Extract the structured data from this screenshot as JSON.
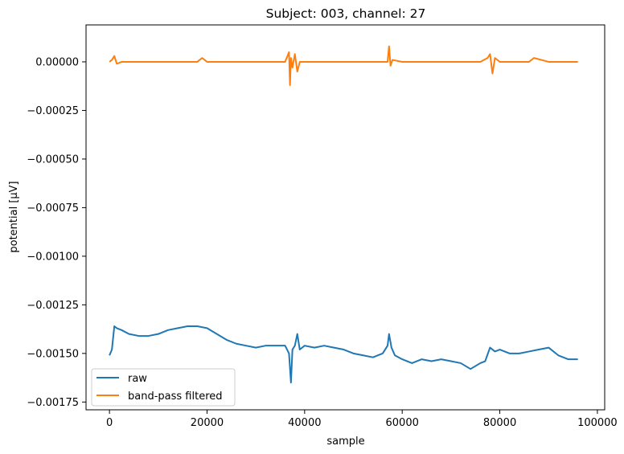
{
  "chart_data": {
    "type": "line",
    "title": "Subject: 003, channel: 27",
    "xlabel": "sample",
    "ylabel": "potential [µV]",
    "xlim": [
      -4800,
      101500
    ],
    "ylim": [
      -0.00179,
      0.00019
    ],
    "x_ticks": [
      0,
      20000,
      40000,
      60000,
      80000,
      100000
    ],
    "x_tick_labels": [
      "0",
      "20000",
      "40000",
      "60000",
      "80000",
      "100000"
    ],
    "y_ticks": [
      0.0,
      -0.00025,
      -0.0005,
      -0.00075,
      -0.001,
      -0.00125,
      -0.0015,
      -0.00175
    ],
    "y_tick_labels": [
      "0.00000",
      "−0.00025",
      "−0.00050",
      "−0.00075",
      "−0.00100",
      "−0.00125",
      "−0.00150",
      "−0.00175"
    ],
    "grid": false,
    "legend": "lower-left",
    "series": [
      {
        "name": "raw",
        "color": "#1f77b4",
        "x": [
          0,
          500,
          1000,
          1500,
          2500,
          4000,
          6000,
          8000,
          10000,
          12000,
          14000,
          16000,
          18000,
          20000,
          22000,
          24000,
          26000,
          28000,
          30000,
          32000,
          34000,
          36000,
          36800,
          37200,
          37500,
          38000,
          38500,
          39000,
          40000,
          42000,
          44000,
          46000,
          48000,
          50000,
          52000,
          54000,
          56000,
          57000,
          57300,
          57800,
          58500,
          60000,
          62000,
          64000,
          66000,
          68000,
          70000,
          72000,
          74000,
          76000,
          77000,
          78000,
          79000,
          80000,
          82000,
          84000,
          86000,
          88000,
          90000,
          92000,
          94000,
          96000
        ],
        "y": [
          -0.00151,
          -0.00148,
          -0.00136,
          -0.00137,
          -0.00138,
          -0.0014,
          -0.00141,
          -0.00141,
          -0.0014,
          -0.00138,
          -0.00137,
          -0.00136,
          -0.00136,
          -0.00137,
          -0.0014,
          -0.00143,
          -0.00145,
          -0.00146,
          -0.00147,
          -0.00146,
          -0.00146,
          -0.00146,
          -0.0015,
          -0.00165,
          -0.00148,
          -0.00146,
          -0.0014,
          -0.00148,
          -0.00146,
          -0.00147,
          -0.00146,
          -0.00147,
          -0.00148,
          -0.0015,
          -0.00151,
          -0.00152,
          -0.0015,
          -0.00146,
          -0.0014,
          -0.00147,
          -0.00151,
          -0.00153,
          -0.00155,
          -0.00153,
          -0.00154,
          -0.00153,
          -0.00154,
          -0.00155,
          -0.00158,
          -0.00155,
          -0.00154,
          -0.00147,
          -0.00149,
          -0.00148,
          -0.0015,
          -0.0015,
          -0.00149,
          -0.00148,
          -0.00147,
          -0.00151,
          -0.00153,
          -0.00153
        ]
      },
      {
        "name": "band-pass filtered",
        "color": "#ff7f0e",
        "x": [
          0,
          500,
          1000,
          1500,
          2500,
          4000,
          8000,
          12000,
          16000,
          18000,
          19000,
          20000,
          24000,
          28000,
          32000,
          36000,
          36800,
          37000,
          37200,
          37500,
          38000,
          38500,
          39000,
          40000,
          44000,
          48000,
          52000,
          56000,
          57000,
          57300,
          57600,
          58000,
          60000,
          64000,
          68000,
          72000,
          76000,
          77500,
          78000,
          78500,
          79000,
          80000,
          84000,
          86000,
          87000,
          90000,
          94000,
          96000
        ],
        "y": [
          0.0,
          1e-05,
          3e-05,
          -1e-05,
          0.0,
          0.0,
          0.0,
          0.0,
          0.0,
          0.0,
          2e-05,
          0.0,
          0.0,
          0.0,
          0.0,
          0.0,
          5e-05,
          -0.00012,
          2e-05,
          -3e-05,
          4e-05,
          -5e-05,
          0.0,
          0.0,
          0.0,
          0.0,
          0.0,
          0.0,
          0.0,
          8e-05,
          -2e-05,
          1e-05,
          0.0,
          0.0,
          0.0,
          0.0,
          0.0,
          2e-05,
          4e-05,
          -6e-05,
          2e-05,
          0.0,
          0.0,
          0.0,
          2e-05,
          0.0,
          0.0,
          0.0
        ]
      }
    ]
  }
}
